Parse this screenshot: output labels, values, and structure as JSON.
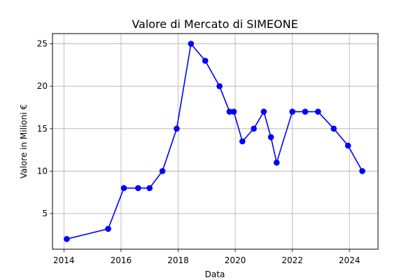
{
  "chart_data": {
    "type": "line",
    "title": "Valore di Mercato di SIMEONE",
    "xlabel": "Data",
    "ylabel": "Valore in Milioni €",
    "grid": true,
    "xlim": [
      2013.6,
      2025.0
    ],
    "ylim": [
      0.8,
      26.2
    ],
    "xticks": [
      2014,
      2016,
      2018,
      2020,
      2022,
      2024
    ],
    "yticks": [
      5,
      10,
      15,
      20,
      25
    ],
    "series": [
      {
        "color": "#0000ff",
        "marker": "circle",
        "points": [
          {
            "x": 2014.1,
            "y": 2
          },
          {
            "x": 2015.55,
            "y": 3.2
          },
          {
            "x": 2016.1,
            "y": 8
          },
          {
            "x": 2016.6,
            "y": 8
          },
          {
            "x": 2017.0,
            "y": 8
          },
          {
            "x": 2017.45,
            "y": 10
          },
          {
            "x": 2017.95,
            "y": 15
          },
          {
            "x": 2018.45,
            "y": 25
          },
          {
            "x": 2018.95,
            "y": 23
          },
          {
            "x": 2019.45,
            "y": 20
          },
          {
            "x": 2019.8,
            "y": 17
          },
          {
            "x": 2019.95,
            "y": 17
          },
          {
            "x": 2020.25,
            "y": 13.5
          },
          {
            "x": 2020.65,
            "y": 15
          },
          {
            "x": 2021.0,
            "y": 17
          },
          {
            "x": 2021.25,
            "y": 14
          },
          {
            "x": 2021.45,
            "y": 11
          },
          {
            "x": 2022.0,
            "y": 17
          },
          {
            "x": 2022.45,
            "y": 17
          },
          {
            "x": 2022.9,
            "y": 17
          },
          {
            "x": 2023.45,
            "y": 15
          },
          {
            "x": 2023.95,
            "y": 13
          },
          {
            "x": 2024.45,
            "y": 10
          }
        ]
      }
    ]
  }
}
